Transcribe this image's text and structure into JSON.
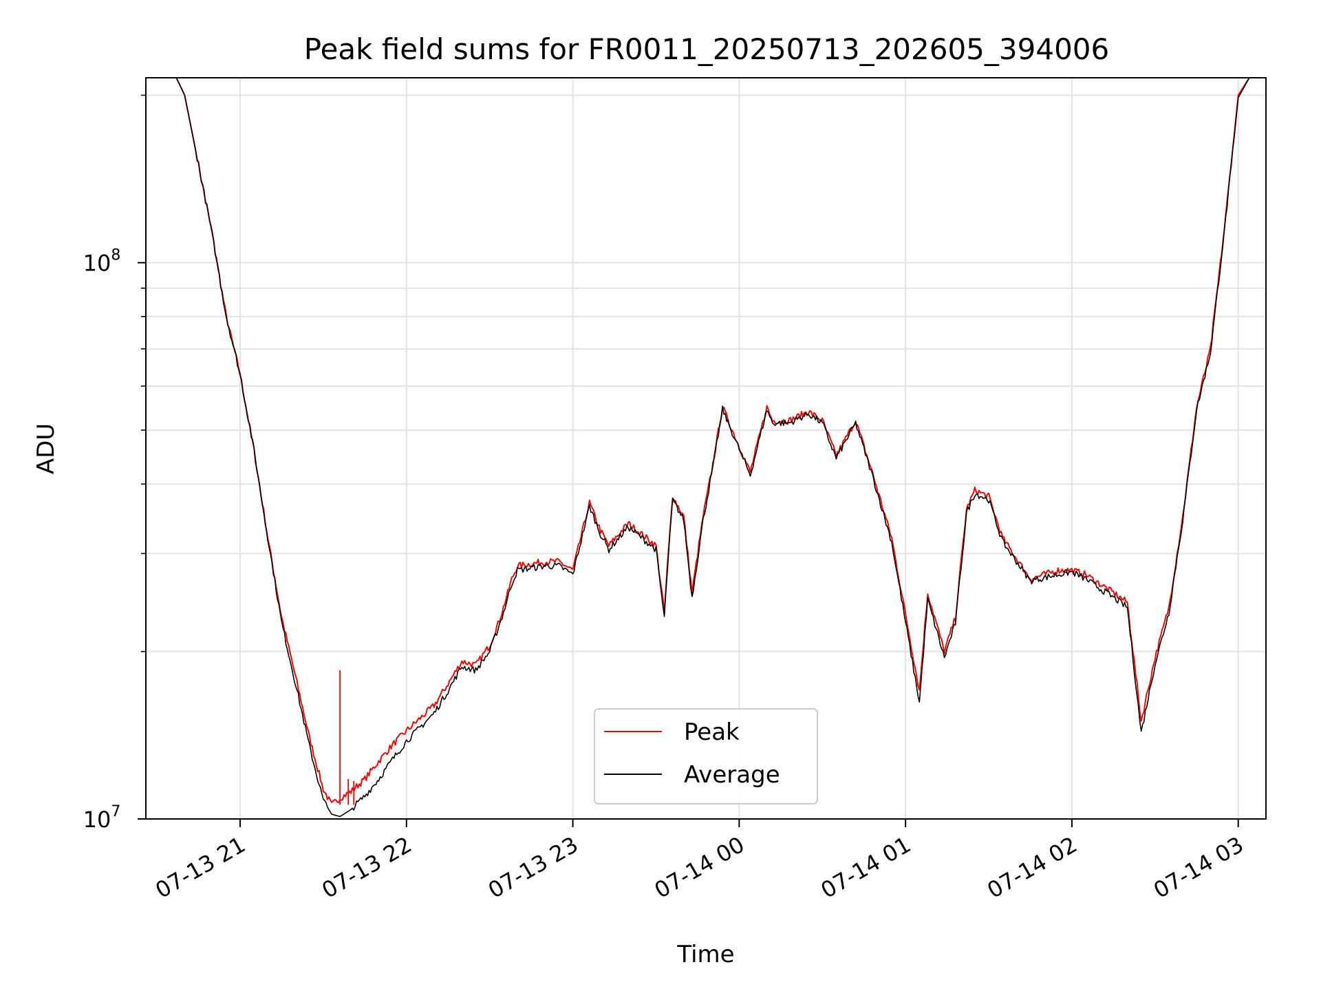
{
  "chart_data": {
    "type": "line",
    "title": "Peak field sums for FR0011_20250713_202605_394006",
    "xlabel": "Time",
    "ylabel": "ADU",
    "yscale": "log",
    "ylim": [
      10000000,
      215000000
    ],
    "xlim": [
      "2025-07-13 20:26",
      "2025-07-14 03:10"
    ],
    "grid": true,
    "legend_position": "lower-center",
    "x_ticks": [
      {
        "value": "2025-07-13 21:00",
        "label": "07-13 21"
      },
      {
        "value": "2025-07-13 22:00",
        "label": "07-13 22"
      },
      {
        "value": "2025-07-13 23:00",
        "label": "07-13 23"
      },
      {
        "value": "2025-07-14 00:00",
        "label": "07-14 00"
      },
      {
        "value": "2025-07-14 01:00",
        "label": "07-14 01"
      },
      {
        "value": "2025-07-14 02:00",
        "label": "07-14 02"
      },
      {
        "value": "2025-07-14 03:00",
        "label": "07-14 03"
      }
    ],
    "y_major_ticks": [
      {
        "value": 10000000,
        "base": "10",
        "exp": "7"
      },
      {
        "value": 100000000,
        "base": "10",
        "exp": "8"
      }
    ],
    "y_minor_ticks": [
      20000000,
      30000000,
      40000000,
      50000000,
      60000000,
      70000000,
      80000000,
      90000000,
      200000000
    ],
    "series": [
      {
        "name": "Peak",
        "color": "#ff0000",
        "x": [
          "2025-07-13 20:26",
          "2025-07-13 20:37",
          "2025-07-13 20:40",
          "2025-07-13 20:45",
          "2025-07-13 20:50",
          "2025-07-13 20:55",
          "2025-07-13 21:00",
          "2025-07-13 21:05",
          "2025-07-13 21:10",
          "2025-07-13 21:15",
          "2025-07-13 21:20",
          "2025-07-13 21:25",
          "2025-07-13 21:30",
          "2025-07-13 21:33",
          "2025-07-13 21:36",
          "2025-07-13 21:40",
          "2025-07-13 21:45",
          "2025-07-13 21:50",
          "2025-07-13 21:55",
          "2025-07-13 22:00",
          "2025-07-13 22:10",
          "2025-07-13 22:15",
          "2025-07-13 22:20",
          "2025-07-13 22:25",
          "2025-07-13 22:30",
          "2025-07-13 22:33",
          "2025-07-13 22:35",
          "2025-07-13 22:38",
          "2025-07-13 22:40",
          "2025-07-13 22:50",
          "2025-07-13 22:55",
          "2025-07-13 23:00",
          "2025-07-13 23:06",
          "2025-07-13 23:10",
          "2025-07-13 23:13",
          "2025-07-13 23:20",
          "2025-07-13 23:30",
          "2025-07-13 23:33",
          "2025-07-13 23:34",
          "2025-07-13 23:36",
          "2025-07-13 23:40",
          "2025-07-13 23:43",
          "2025-07-13 23:47",
          "2025-07-13 23:50",
          "2025-07-13 23:54",
          "2025-07-13 23:59",
          "2025-07-14 00:04",
          "2025-07-14 00:10",
          "2025-07-14 00:12",
          "2025-07-14 00:18",
          "2025-07-14 00:25",
          "2025-07-14 00:30",
          "2025-07-14 00:35",
          "2025-07-14 00:42",
          "2025-07-14 00:48",
          "2025-07-14 00:55",
          "2025-07-14 01:05",
          "2025-07-14 01:08",
          "2025-07-14 01:14",
          "2025-07-14 01:18",
          "2025-07-14 01:22",
          "2025-07-14 01:25",
          "2025-07-14 01:30",
          "2025-07-14 01:35",
          "2025-07-14 01:45",
          "2025-07-14 01:55",
          "2025-07-14 02:00",
          "2025-07-14 02:05",
          "2025-07-14 02:15",
          "2025-07-14 02:20",
          "2025-07-14 02:25",
          "2025-07-14 02:30",
          "2025-07-14 02:35",
          "2025-07-14 02:40",
          "2025-07-14 02:45",
          "2025-07-14 02:50",
          "2025-07-14 02:55",
          "2025-07-14 02:58",
          "2025-07-14 03:00",
          "2025-07-14 03:04",
          "2025-07-14 03:10"
        ],
        "y": [
          215000000,
          215000000,
          200000000,
          150000000,
          112000000,
          80000000,
          63000000,
          46000000,
          32000000,
          23000000,
          18000000,
          14000000,
          11300000,
          10600000,
          10900000,
          11200000,
          11800000,
          12700000,
          13600000,
          14400000,
          16000000,
          17500000,
          19200000,
          18900000,
          20500000,
          22400000,
          24000000,
          27000000,
          28500000,
          29000000,
          29000000,
          28000000,
          37000000,
          33000000,
          31000000,
          34000000,
          31000000,
          23500000,
          28000000,
          38000000,
          35000000,
          25500000,
          35000000,
          42000000,
          55000000,
          48000000,
          42000000,
          55000000,
          52000000,
          52000000,
          54000000,
          52000000,
          45000000,
          52000000,
          42000000,
          32000000,
          17000000,
          25500000,
          20000000,
          23000000,
          36000000,
          39000000,
          38000000,
          32000000,
          27000000,
          28000000,
          28000000,
          27500000,
          25500000,
          24500000,
          15000000,
          19500000,
          24000000,
          35000000,
          55000000,
          70000000,
          115000000,
          160000000,
          200000000,
          215000000,
          215000000
        ]
      },
      {
        "name": "Average",
        "color": "#000000",
        "x": [
          "2025-07-13 20:26",
          "2025-07-13 20:37",
          "2025-07-13 20:40",
          "2025-07-13 20:45",
          "2025-07-13 20:50",
          "2025-07-13 20:55",
          "2025-07-13 21:00",
          "2025-07-13 21:05",
          "2025-07-13 21:10",
          "2025-07-13 21:15",
          "2025-07-13 21:20",
          "2025-07-13 21:25",
          "2025-07-13 21:30",
          "2025-07-13 21:33",
          "2025-07-13 21:36",
          "2025-07-13 21:40",
          "2025-07-13 21:45",
          "2025-07-13 21:50",
          "2025-07-13 21:55",
          "2025-07-13 22:00",
          "2025-07-13 22:10",
          "2025-07-13 22:15",
          "2025-07-13 22:20",
          "2025-07-13 22:25",
          "2025-07-13 22:30",
          "2025-07-13 22:33",
          "2025-07-13 22:35",
          "2025-07-13 22:38",
          "2025-07-13 22:40",
          "2025-07-13 22:50",
          "2025-07-13 22:55",
          "2025-07-13 23:00",
          "2025-07-13 23:06",
          "2025-07-13 23:10",
          "2025-07-13 23:13",
          "2025-07-13 23:20",
          "2025-07-13 23:30",
          "2025-07-13 23:33",
          "2025-07-13 23:34",
          "2025-07-13 23:36",
          "2025-07-13 23:40",
          "2025-07-13 23:43",
          "2025-07-13 23:47",
          "2025-07-13 23:50",
          "2025-07-13 23:54",
          "2025-07-13 23:59",
          "2025-07-14 00:04",
          "2025-07-14 00:10",
          "2025-07-14 00:12",
          "2025-07-14 00:18",
          "2025-07-14 00:25",
          "2025-07-14 00:30",
          "2025-07-14 00:35",
          "2025-07-14 00:42",
          "2025-07-14 00:48",
          "2025-07-14 00:55",
          "2025-07-14 01:05",
          "2025-07-14 01:08",
          "2025-07-14 01:14",
          "2025-07-14 01:18",
          "2025-07-14 01:22",
          "2025-07-14 01:25",
          "2025-07-14 01:30",
          "2025-07-14 01:35",
          "2025-07-14 01:45",
          "2025-07-14 01:55",
          "2025-07-14 02:00",
          "2025-07-14 02:05",
          "2025-07-14 02:15",
          "2025-07-14 02:20",
          "2025-07-14 02:25",
          "2025-07-14 02:30",
          "2025-07-14 02:35",
          "2025-07-14 02:40",
          "2025-07-14 02:45",
          "2025-07-14 02:50",
          "2025-07-14 02:55",
          "2025-07-14 02:58",
          "2025-07-14 03:00",
          "2025-07-14 03:04",
          "2025-07-14 03:10"
        ],
        "y": [
          215000000,
          215000000,
          200000000,
          150000000,
          112000000,
          80000000,
          63000000,
          46000000,
          32000000,
          22500000,
          17500000,
          13500000,
          10800000,
          10200000,
          10100000,
          10400000,
          11000000,
          11800000,
          12800000,
          13800000,
          15500000,
          17000000,
          18800000,
          18500000,
          20000000,
          22000000,
          23500000,
          26500000,
          28000000,
          28500000,
          28500000,
          27500000,
          36500000,
          32500000,
          30500000,
          33500000,
          30500000,
          23000000,
          27500000,
          37500000,
          34500000,
          25000000,
          34500000,
          41500000,
          54500000,
          47500000,
          41500000,
          54500000,
          51500000,
          51500000,
          53500000,
          51500000,
          44500000,
          51500000,
          41500000,
          31500000,
          16200000,
          24800000,
          19500000,
          22500000,
          35500000,
          38500000,
          37500000,
          31500000,
          26800000,
          27500000,
          27800000,
          27000000,
          25000000,
          24000000,
          14300000,
          19000000,
          23500000,
          34500000,
          54500000,
          69000000,
          114000000,
          158000000,
          198000000,
          215000000,
          215000000
        ]
      }
    ],
    "spikes": [
      {
        "series": "Peak",
        "x": "2025-07-13 21:36",
        "y": 18500000
      },
      {
        "series": "Peak",
        "x": "2025-07-13 21:39",
        "y": 11800000
      },
      {
        "series": "Peak",
        "x": "2025-07-13 21:41",
        "y": 11700000
      }
    ]
  }
}
